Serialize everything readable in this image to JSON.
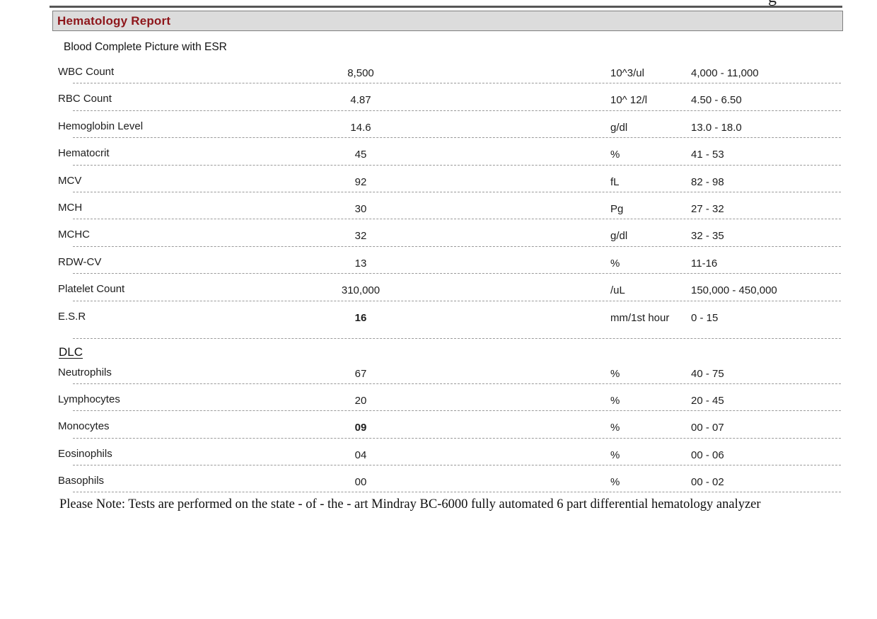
{
  "colors": {
    "accent_red": "#8e161b",
    "bar_gray": "#dcdcdc",
    "bar_border": "#7f7f7f",
    "rule_gray": "#565656",
    "dash_gray": "#9a9a9a"
  },
  "top_edge_partial_text": "g",
  "header": {
    "title": "Hematology Report"
  },
  "subtitle": "Blood Complete Picture with ESR",
  "results": {
    "rows": [
      {
        "name": "WBC Count",
        "value": "8,500",
        "bold": false,
        "unit": "10^3/ul",
        "range": "4,000 - 11,000"
      },
      {
        "name": "RBC Count",
        "value": "4.87",
        "bold": false,
        "unit": "10^ 12/l",
        "range": "4.50 - 6.50"
      },
      {
        "name": "Hemoglobin Level",
        "value": "14.6",
        "bold": false,
        "unit": "g/dl",
        "range": "13.0 - 18.0"
      },
      {
        "name": "Hematocrit",
        "value": "45",
        "bold": false,
        "unit": "%",
        "range": "41 - 53"
      },
      {
        "name": "MCV",
        "value": "92",
        "bold": false,
        "unit": "fL",
        "range": "82 - 98"
      },
      {
        "name": "MCH",
        "value": "30",
        "bold": false,
        "unit": "Pg",
        "range": "27 - 32"
      },
      {
        "name": "MCHC",
        "value": "32",
        "bold": false,
        "unit": "g/dl",
        "range": "32 - 35"
      },
      {
        "name": "RDW-CV",
        "value": "13",
        "bold": false,
        "unit": "%",
        "range": "11-16"
      },
      {
        "name": "Platelet Count",
        "value": "310,000",
        "bold": false,
        "unit": "/uL",
        "range": "150,000 - 450,000"
      },
      {
        "name": "E.S.R",
        "value": "16",
        "bold": true,
        "unit": "mm/1st hour",
        "range": "0 - 15"
      }
    ]
  },
  "dlc": {
    "heading": "DLC",
    "rows": [
      {
        "name": "Neutrophils",
        "value": "67",
        "bold": false,
        "unit": "%",
        "range": "40 - 75"
      },
      {
        "name": "Lymphocytes",
        "value": "20",
        "bold": false,
        "unit": "%",
        "range": "20 - 45"
      },
      {
        "name": "Monocytes",
        "value": "09",
        "bold": true,
        "unit": "%",
        "range": "00 - 07"
      },
      {
        "name": "Eosinophils",
        "value": "04",
        "bold": false,
        "unit": "%",
        "range": "00 - 06"
      },
      {
        "name": "Basophils",
        "value": "00",
        "bold": false,
        "unit": "%",
        "range": "00 - 02"
      }
    ]
  },
  "note": "Please Note: Tests are performed on the state - of - the - art Mindray BC-6000 fully automated 6 part differential hematology analyzer"
}
